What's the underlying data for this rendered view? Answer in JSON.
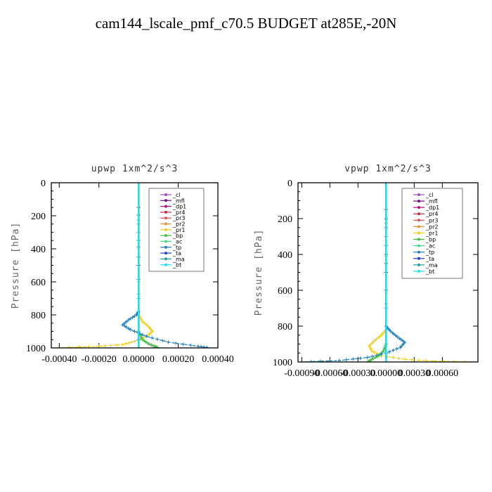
{
  "figure_title": "cam144_lscale_pmf_c70.5  BUDGET at285E,-20N",
  "chart_data": [
    {
      "type": "line",
      "title": "upwp   1xm^2/s^3",
      "ylabel": "Pressure [hPa]",
      "xlabel": "",
      "xlim": [
        -0.00044,
        0.0004
      ],
      "ylim": [
        1000,
        0
      ],
      "yticks": [
        0,
        200,
        400,
        600,
        800,
        1000
      ],
      "ytick_labels": [
        "0",
        "200",
        "400",
        "600",
        "800",
        "1000"
      ],
      "xticks": [
        -0.0004,
        -0.0002,
        0.0,
        0.0002,
        0.0004
      ],
      "xtick_labels": [
        "-0.00040",
        "-0.00020",
        "0.00000",
        "0.00020",
        "0.00040"
      ],
      "legend_position": "top-right",
      "series": [
        {
          "name": "_cl",
          "color": "#a050c8",
          "x": [
            0,
            0,
            0,
            0
          ],
          "y": [
            0,
            500,
            900,
            1000
          ]
        },
        {
          "name": "_mfl",
          "color": "#7a0a8c",
          "x": [
            0,
            0,
            0,
            0,
            0
          ],
          "y": [
            0,
            300,
            700,
            950,
            1000
          ]
        },
        {
          "name": "_dp1",
          "color": "#b0107a",
          "x": [
            0,
            0,
            0,
            0,
            0
          ],
          "y": [
            0,
            300,
            700,
            950,
            1000
          ]
        },
        {
          "name": "_pr4",
          "color": "#c83040",
          "x": [
            0,
            0,
            0,
            0
          ],
          "y": [
            0,
            600,
            950,
            1000
          ]
        },
        {
          "name": "_pr3",
          "color": "#e85050",
          "x": [
            0,
            0,
            0,
            0
          ],
          "y": [
            0,
            600,
            950,
            1000
          ]
        },
        {
          "name": "_pr2",
          "color": "#f09030",
          "x": [
            0,
            0,
            0,
            0
          ],
          "y": [
            0,
            600,
            950,
            1000
          ]
        },
        {
          "name": "_pr1",
          "color": "#f0d020",
          "x": [
            0,
            0,
            2e-05,
            5e-05,
            7e-05,
            4e-05,
            -2e-05,
            -8e-05,
            -0.0002,
            -0.0004
          ],
          "y": [
            0,
            800,
            840,
            870,
            900,
            930,
            960,
            980,
            990,
            1000
          ]
        },
        {
          "name": "_bp",
          "color": "#40c040",
          "x": [
            0,
            0,
            2e-05,
            5e-05,
            8e-05,
            0.0001
          ],
          "y": [
            0,
            900,
            950,
            975,
            990,
            1000
          ]
        },
        {
          "name": "_ac",
          "color": "#40e080",
          "x": [
            0,
            0,
            0,
            0
          ],
          "y": [
            0,
            700,
            950,
            1000
          ]
        },
        {
          "name": "_tp",
          "color": "#2080c0",
          "x": [
            0,
            0,
            -1e-05,
            -5e-05,
            -8e-05,
            -4e-05,
            4e-05,
            0.00015,
            0.0003,
            0.00036
          ],
          "y": [
            0,
            780,
            800,
            830,
            860,
            890,
            930,
            965,
            990,
            1000
          ]
        },
        {
          "name": "_ta",
          "color": "#2040e0",
          "x": [
            0,
            0,
            0,
            0
          ],
          "y": [
            0,
            700,
            950,
            1000
          ]
        },
        {
          "name": "_ma",
          "color": "#20a0a0",
          "x": [
            0,
            0,
            0,
            0
          ],
          "y": [
            0,
            700,
            950,
            1000
          ]
        },
        {
          "name": "_bt",
          "color": "#20e0f0",
          "x": [
            0,
            0,
            0,
            0
          ],
          "y": [
            0,
            700,
            950,
            1000
          ]
        }
      ]
    },
    {
      "type": "line",
      "title": "vpwp   1xm^2/s^3",
      "ylabel": "Pressure [hPa]",
      "xlabel": "",
      "xlim": [
        -0.00094,
        0.00098
      ],
      "ylim": [
        1000,
        0
      ],
      "yticks": [
        0,
        200,
        400,
        600,
        800,
        1000
      ],
      "ytick_labels": [
        "0",
        "200",
        "400",
        "600",
        "800",
        "1000"
      ],
      "xticks": [
        -0.0009,
        -0.0006,
        -0.0003,
        0.0,
        0.0003,
        0.0006
      ],
      "xtick_labels": [
        "-0.00090",
        "-0.00060",
        "-0.00030",
        "0.00000",
        "0.00030",
        "0.00060"
      ],
      "legend_position": "top-right",
      "series": [
        {
          "name": "_cl",
          "color": "#a050c8",
          "x": [
            0,
            0,
            0,
            0
          ],
          "y": [
            0,
            500,
            900,
            1000
          ]
        },
        {
          "name": "_mfl",
          "color": "#7a0a8c",
          "x": [
            0,
            0,
            0,
            0,
            0
          ],
          "y": [
            0,
            300,
            700,
            950,
            1000
          ]
        },
        {
          "name": "_dp1",
          "color": "#b0107a",
          "x": [
            0,
            0,
            0,
            0,
            0
          ],
          "y": [
            0,
            300,
            700,
            950,
            1000
          ]
        },
        {
          "name": "_pr4",
          "color": "#c83040",
          "x": [
            0,
            0,
            0,
            0
          ],
          "y": [
            0,
            600,
            950,
            1000
          ]
        },
        {
          "name": "_pr3",
          "color": "#e85050",
          "x": [
            0,
            0,
            0,
            0
          ],
          "y": [
            0,
            600,
            950,
            1000
          ]
        },
        {
          "name": "_pr2",
          "color": "#f09030",
          "x": [
            0,
            0,
            0,
            0
          ],
          "y": [
            0,
            600,
            950,
            1000
          ]
        },
        {
          "name": "_pr1",
          "color": "#f0d020",
          "x": [
            0,
            0,
            -5e-05,
            -0.00012,
            -0.00018,
            -0.00015,
            -5e-05,
            0.0002,
            0.0005,
            0.00095
          ],
          "y": [
            0,
            820,
            850,
            880,
            910,
            940,
            965,
            985,
            995,
            1000
          ]
        },
        {
          "name": "_bp",
          "color": "#40c040",
          "x": [
            0,
            0,
            -3e-05,
            -8e-05,
            -0.00015,
            -0.0002
          ],
          "y": [
            0,
            900,
            940,
            965,
            985,
            1000
          ]
        },
        {
          "name": "_ac",
          "color": "#40e080",
          "x": [
            0,
            0,
            0,
            0
          ],
          "y": [
            0,
            700,
            950,
            1000
          ]
        },
        {
          "name": "_tp",
          "color": "#2080c0",
          "x": [
            0,
            0,
            5e-05,
            0.00012,
            0.0002,
            0.00015,
            0.0,
            -0.0002,
            -0.0005,
            -0.0009
          ],
          "y": [
            0,
            800,
            830,
            860,
            890,
            920,
            950,
            975,
            992,
            1000
          ]
        },
        {
          "name": "_ta",
          "color": "#2040e0",
          "x": [
            0,
            0,
            0,
            0
          ],
          "y": [
            0,
            700,
            950,
            1000
          ]
        },
        {
          "name": "_ma",
          "color": "#20a0a0",
          "x": [
            0,
            0,
            0,
            0
          ],
          "y": [
            0,
            700,
            950,
            1000
          ]
        },
        {
          "name": "_bt",
          "color": "#20e0f0",
          "x": [
            0,
            0,
            0,
            0
          ],
          "y": [
            0,
            700,
            950,
            1000
          ]
        }
      ]
    }
  ]
}
